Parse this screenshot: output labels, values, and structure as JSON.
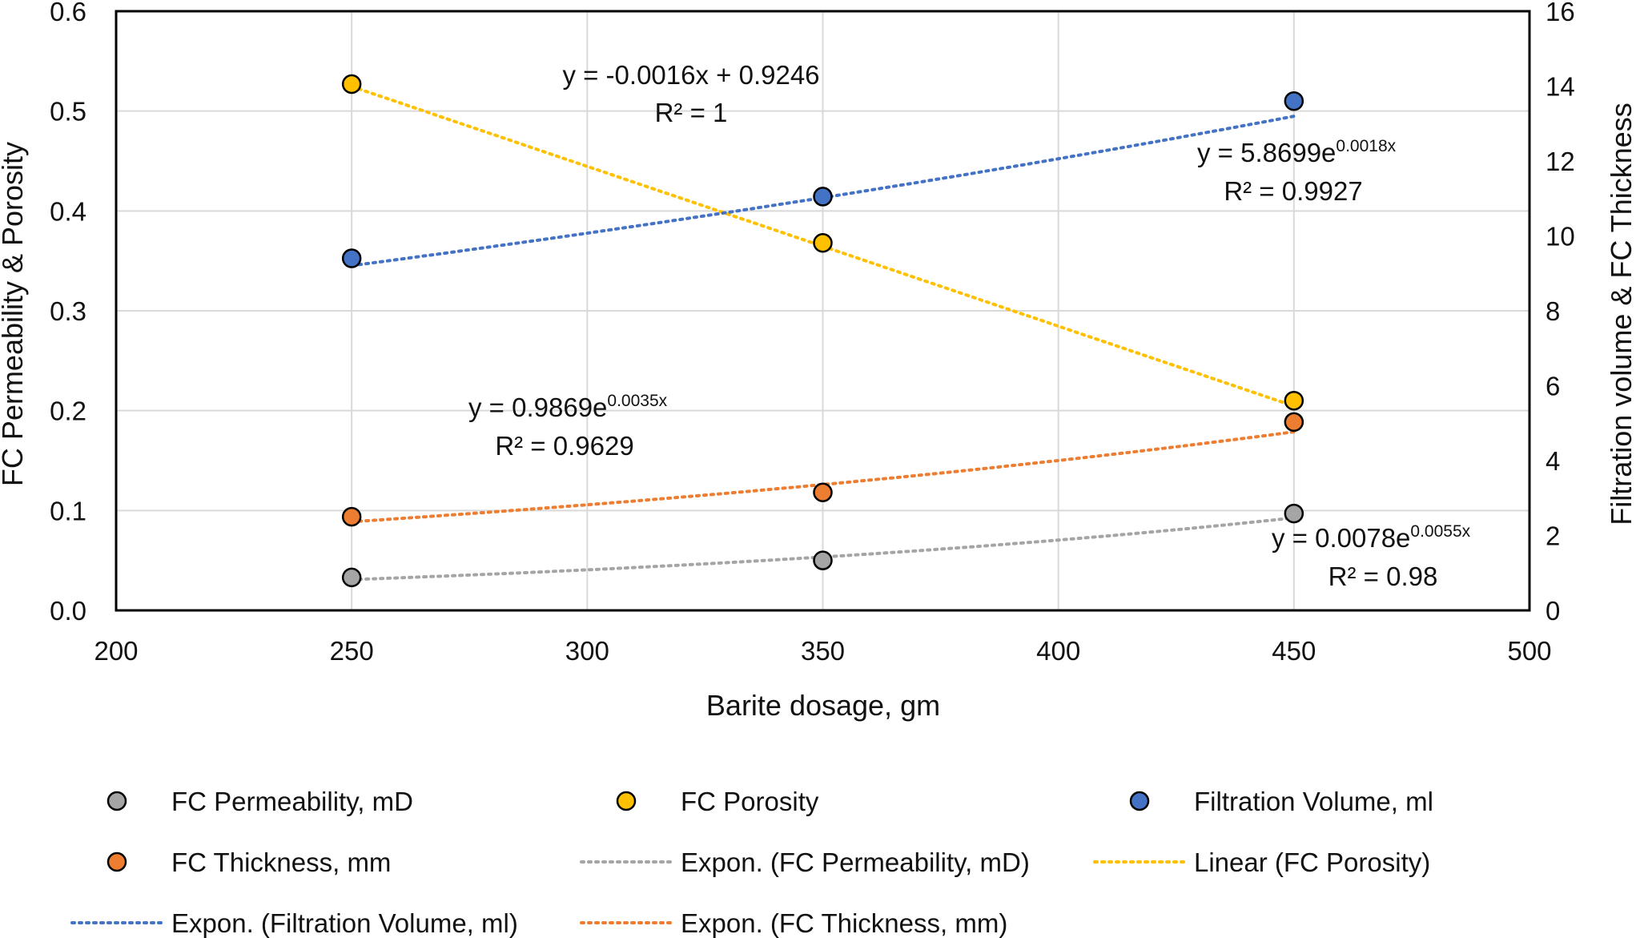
{
  "chart_data": {
    "type": "scatter",
    "title": "",
    "xlabel": "Barite dosage, gm",
    "ylabel": "FC Permeability & Porosity",
    "y2label": "Filtration volume & FC Thickness",
    "xlim": [
      200,
      500
    ],
    "ylim": [
      0,
      0.6
    ],
    "y2lim": [
      0,
      16
    ],
    "x_ticks": [
      "200",
      "250",
      "300",
      "350",
      "400",
      "450",
      "500"
    ],
    "y_ticks": [
      "0.0",
      "0.1",
      "0.2",
      "0.3",
      "0.4",
      "0.5",
      "0.6"
    ],
    "y2_ticks": [
      "0",
      "2",
      "4",
      "6",
      "8",
      "10",
      "12",
      "14",
      "16"
    ],
    "grid": true,
    "legend_position": "bottom",
    "series": [
      {
        "name": "FC Permeability, mD",
        "axis": "left",
        "color": "#A5A5A5",
        "x": [
          250,
          350,
          450
        ],
        "y": [
          0.033,
          0.05,
          0.097
        ]
      },
      {
        "name": "FC Porosity",
        "axis": "left",
        "color": "#FFC000",
        "x": [
          250,
          350,
          450
        ],
        "y": [
          0.527,
          0.368,
          0.21
        ]
      },
      {
        "name": "Filtration Volume, ml",
        "axis": "right",
        "color": "#4472C4",
        "x": [
          250,
          350,
          450
        ],
        "y": [
          9.4,
          11.05,
          13.6
        ]
      },
      {
        "name": "FC Thickness, mm",
        "axis": "right",
        "color": "#ED7D31",
        "x": [
          250,
          350,
          450
        ],
        "y": [
          2.5,
          3.15,
          5.03
        ]
      }
    ],
    "trendlines": [
      {
        "name": "Expon. (FC Permeability, mD)",
        "series": 0,
        "kind": "exponential",
        "a": 0.0078,
        "b": 0.0055,
        "color": "#A5A5A5"
      },
      {
        "name": "Linear (FC Porosity)",
        "series": 1,
        "kind": "linear",
        "m": -0.0016,
        "c": 0.9246,
        "color": "#FFC000"
      },
      {
        "name": "Expon. (Filtration Volume, ml)",
        "series": 2,
        "kind": "exponential",
        "a": 5.8699,
        "b": 0.0018,
        "color": "#4472C4"
      },
      {
        "name": "Expon. (FC Thickness, mm)",
        "series": 3,
        "kind": "exponential",
        "a": 0.9869,
        "b": 0.0035,
        "color": "#ED7D31"
      }
    ],
    "annotations": [
      {
        "equation": "y = -0.0016x + 0.9246",
        "r2": "R² = 1"
      },
      {
        "base": "y = 5.8699e",
        "exponent": "0.0018x",
        "r2": "R² = 0.9927"
      },
      {
        "base": "y = 0.9869e",
        "exponent": "0.0035x",
        "r2": "R² = 0.9629"
      },
      {
        "base": "y = 0.0078e",
        "exponent": "0.0055x",
        "r2": "R² = 0.98"
      }
    ],
    "legend": [
      {
        "label": "FC Permeability, mD",
        "kind": "marker",
        "color": "#A5A5A5"
      },
      {
        "label": "FC Porosity",
        "kind": "marker",
        "color": "#FFC000"
      },
      {
        "label": "Filtration Volume, ml",
        "kind": "marker",
        "color": "#4472C4"
      },
      {
        "label": "FC Thickness, mm",
        "kind": "marker",
        "color": "#ED7D31"
      },
      {
        "label": "Expon. (FC Permeability, mD)",
        "kind": "line",
        "color": "#A5A5A5"
      },
      {
        "label": "Linear (FC Porosity)",
        "kind": "line",
        "color": "#FFC000"
      },
      {
        "label": "Expon. (Filtration Volume, ml)",
        "kind": "line",
        "color": "#4472C4"
      },
      {
        "label": "Expon. (FC Thickness, mm)",
        "kind": "line",
        "color": "#ED7D31"
      }
    ]
  }
}
